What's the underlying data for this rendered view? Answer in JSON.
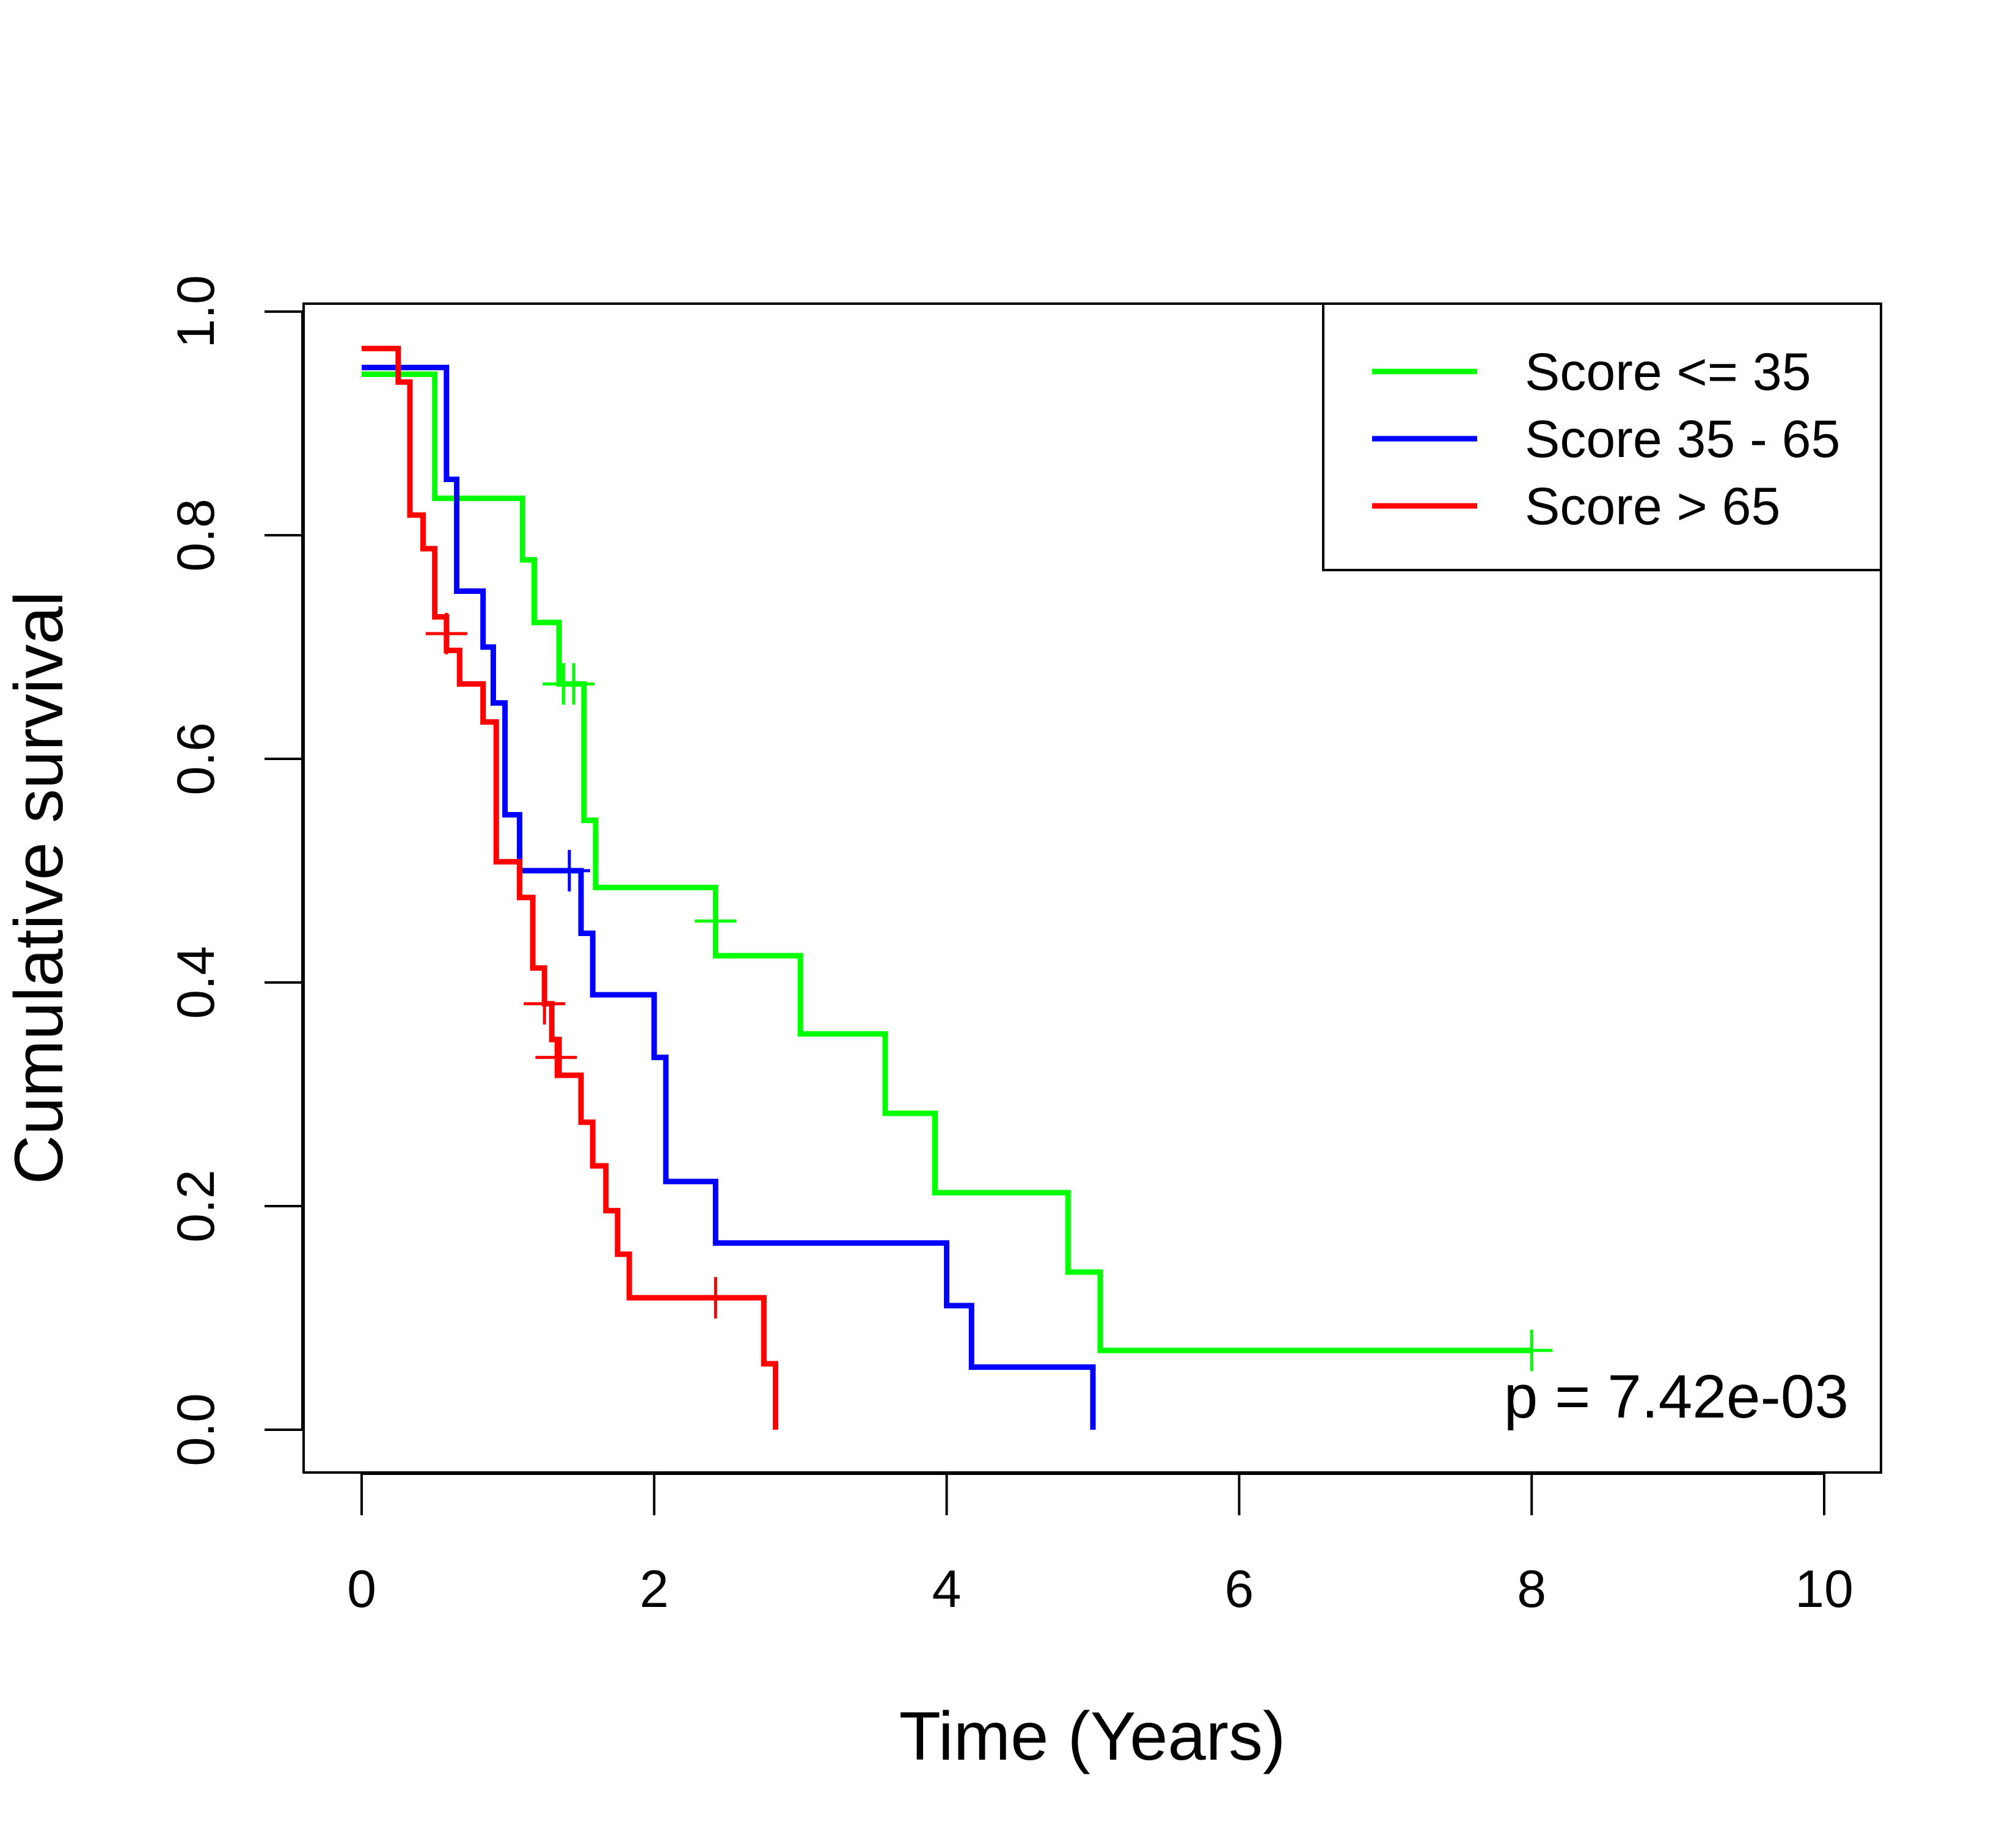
{
  "chart_data": {
    "type": "line",
    "xlabel": "Time (Years)",
    "ylabel": "Cumulative survival",
    "xlim": [
      0,
      10
    ],
    "ylim": [
      0,
      1
    ],
    "x_ticks": [
      "0",
      "2",
      "4",
      "6",
      "8",
      "10"
    ],
    "y_ticks": [
      "0.0",
      "0.2",
      "0.4",
      "0.6",
      "0.8",
      "1.0"
    ],
    "grid": false,
    "legend_position": "top-right",
    "annotation": "p = 7.42e-03",
    "series": [
      {
        "name": "Score <= 35",
        "color": "#00ff00",
        "steps": [
          [
            0,
            0.944
          ],
          [
            0.5,
            0.833
          ],
          [
            1.1,
            0.778
          ],
          [
            1.18,
            0.722
          ],
          [
            1.35,
            0.667
          ],
          [
            1.52,
            0.545
          ],
          [
            1.6,
            0.485
          ],
          [
            2.42,
            0.424
          ],
          [
            3.0,
            0.354
          ],
          [
            3.58,
            0.283
          ],
          [
            3.92,
            0.212
          ],
          [
            4.83,
            0.141
          ],
          [
            5.05,
            0.071
          ],
          [
            8.0,
            0.071
          ]
        ],
        "censored": [
          [
            1.38,
            0.667
          ],
          [
            1.45,
            0.667
          ],
          [
            2.42,
            0.455
          ],
          [
            8.0,
            0.071
          ]
        ]
      },
      {
        "name": "Score 35 - 65",
        "color": "#0000ff",
        "steps": [
          [
            0,
            0.95
          ],
          [
            0.58,
            0.85
          ],
          [
            0.65,
            0.75
          ],
          [
            0.83,
            0.7
          ],
          [
            0.9,
            0.65
          ],
          [
            0.98,
            0.55
          ],
          [
            1.08,
            0.5
          ],
          [
            1.5,
            0.444
          ],
          [
            1.58,
            0.389
          ],
          [
            2.0,
            0.333
          ],
          [
            2.08,
            0.222
          ],
          [
            2.42,
            0.167
          ],
          [
            4.0,
            0.111
          ],
          [
            4.17,
            0.056
          ],
          [
            5.0,
            0.0
          ]
        ],
        "censored": [
          [
            1.42,
            0.5
          ]
        ]
      },
      {
        "name": "Score > 65",
        "color": "#ff0000",
        "steps": [
          [
            0,
            0.967
          ],
          [
            0.25,
            0.937
          ],
          [
            0.33,
            0.818
          ],
          [
            0.42,
            0.788
          ],
          [
            0.5,
            0.727
          ],
          [
            0.58,
            0.697
          ],
          [
            0.67,
            0.667
          ],
          [
            0.83,
            0.633
          ],
          [
            0.92,
            0.508
          ],
          [
            1.08,
            0.476
          ],
          [
            1.17,
            0.413
          ],
          [
            1.25,
            0.381
          ],
          [
            1.3,
            0.349
          ],
          [
            1.35,
            0.317
          ],
          [
            1.5,
            0.275
          ],
          [
            1.58,
            0.236
          ],
          [
            1.67,
            0.196
          ],
          [
            1.75,
            0.157
          ],
          [
            1.83,
            0.118
          ],
          [
            2.75,
            0.059
          ],
          [
            2.83,
            0.0
          ]
        ],
        "censored": [
          [
            0.58,
            0.712
          ],
          [
            1.25,
            0.381
          ],
          [
            1.33,
            0.333
          ],
          [
            2.42,
            0.118
          ]
        ]
      }
    ]
  }
}
